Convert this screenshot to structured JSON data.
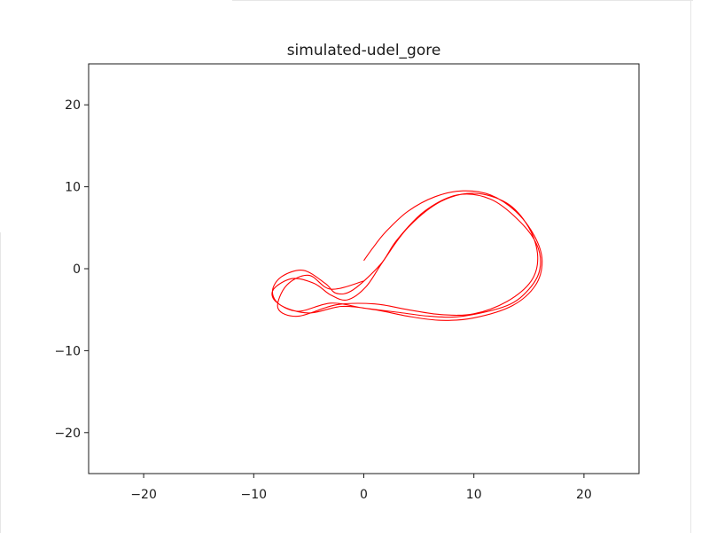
{
  "chart_data": {
    "type": "line",
    "title": "simulated-udel_gore",
    "xlabel": "",
    "ylabel": "",
    "xlim": [
      -25,
      25
    ],
    "ylim": [
      -25,
      25
    ],
    "xticks": [
      -20,
      -10,
      0,
      10,
      20
    ],
    "yticks": [
      -20,
      -10,
      0,
      10,
      20
    ],
    "xtick_labels": [
      "−20",
      "−10",
      "0",
      "10",
      "20"
    ],
    "ytick_labels": [
      "−20",
      "−10",
      "0",
      "10",
      "20"
    ],
    "grid": false,
    "series": [
      {
        "color": "#ff0000",
        "x": [
          0.0,
          0.8,
          2.0,
          4.0,
          6.5,
          9.0,
          11.5,
          13.8,
          15.5,
          16.2,
          15.6,
          13.5,
          10.0,
          7.0,
          4.0,
          1.0,
          -2.0,
          -5.0,
          -7.5,
          -8.3,
          -7.5,
          -5.5,
          -3.5,
          -2.5,
          -1.0,
          1.5,
          3.0,
          5.5,
          8.5,
          11.5,
          14.0,
          15.7,
          16.0,
          15.0,
          13.0,
          9.0,
          6.0,
          3.0,
          0.0,
          -3.0,
          -6.0,
          -8.0,
          -8.2,
          -6.5,
          -4.5,
          -3.0,
          -1.5,
          0.2,
          1.8,
          4.0,
          7.0,
          10.0,
          13.0,
          15.0,
          15.8,
          15.2,
          13.0,
          10.0,
          7.0,
          4.0,
          1.0,
          -2.5,
          -6.0,
          -7.8,
          -7.0,
          -5.0,
          -3.0,
          0.0
        ],
        "y": [
          1.0,
          2.5,
          4.5,
          7.0,
          8.8,
          9.5,
          9.0,
          7.0,
          4.0,
          1.0,
          -2.0,
          -4.5,
          -6.0,
          -6.3,
          -5.8,
          -5.0,
          -4.6,
          -5.4,
          -4.5,
          -2.8,
          -1.0,
          -0.2,
          -1.8,
          -3.0,
          -2.6,
          0.5,
          3.5,
          7.0,
          9.0,
          8.5,
          6.0,
          3.0,
          0.0,
          -2.5,
          -4.5,
          -5.8,
          -5.8,
          -5.3,
          -4.8,
          -4.2,
          -5.2,
          -4.0,
          -2.5,
          -1.2,
          -1.8,
          -3.2,
          -3.8,
          -2.2,
          1.0,
          5.0,
          8.2,
          9.2,
          8.0,
          5.0,
          1.5,
          -1.5,
          -4.0,
          -5.5,
          -5.6,
          -5.0,
          -4.3,
          -4.4,
          -5.8,
          -4.8,
          -2.0,
          -0.8,
          -2.5,
          -1.5
        ]
      }
    ]
  }
}
